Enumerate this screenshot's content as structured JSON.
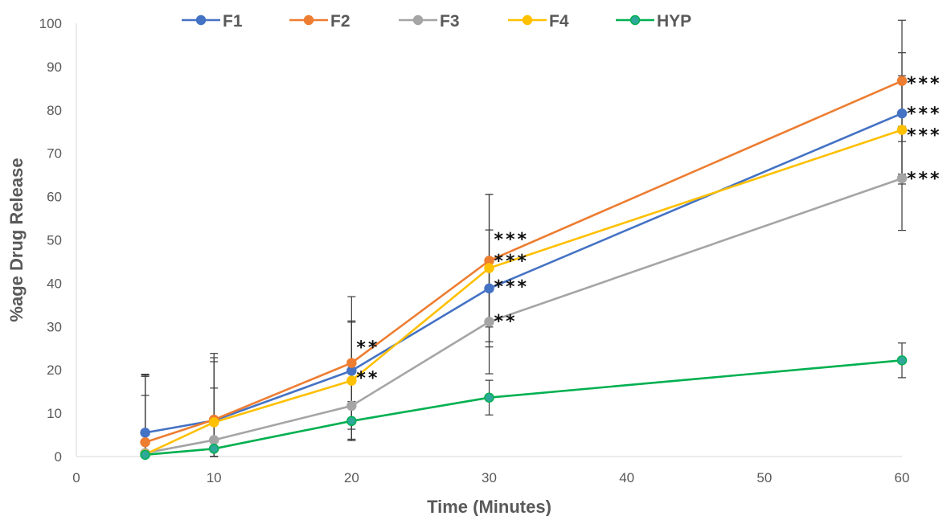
{
  "chart_data": {
    "type": "line",
    "title": "",
    "xlabel": "Time (Minutes)",
    "ylabel": "%age Drug Release",
    "xlim": [
      0,
      60
    ],
    "ylim": [
      0,
      100
    ],
    "x_ticks": [
      0,
      10,
      20,
      30,
      40,
      50,
      60
    ],
    "y_ticks": [
      0,
      10,
      20,
      30,
      40,
      50,
      60,
      70,
      80,
      90,
      100
    ],
    "grid": false,
    "legend_position": "top",
    "x": [
      5,
      10,
      20,
      30,
      60
    ],
    "series": [
      {
        "name": "F1",
        "color": "#4472C4",
        "values": [
          5.5,
          8.3,
          19.8,
          38.8,
          79.2
        ],
        "errors": [
          13,
          14.5,
          11.5,
          13.5,
          14
        ]
      },
      {
        "name": "F2",
        "color": "#ED7D31",
        "values": [
          3.3,
          8.5,
          21.6,
          45.2,
          86.7
        ],
        "errors": [
          15.5,
          15.3,
          15.3,
          15.3,
          14
        ]
      },
      {
        "name": "F3",
        "color": "#A5A5A5",
        "values": [
          0.8,
          3.8,
          11.7,
          31.1,
          64.2
        ],
        "errors": [
          13.3,
          12,
          8,
          12,
          12
        ]
      },
      {
        "name": "F4",
        "color": "#FFC000",
        "values": [
          0.5,
          7.9,
          17.5,
          43.5,
          75.4
        ],
        "errors": [
          18.5,
          14,
          13.5,
          17,
          12.5
        ]
      },
      {
        "name": "HYP",
        "color": "#00B050",
        "marker_fill": "#2FA89A",
        "values": [
          0.4,
          1.8,
          8.2,
          13.6,
          22.2
        ],
        "errors": [
          0.4,
          1.8,
          4.5,
          4,
          4
        ]
      }
    ],
    "annotations": [
      {
        "text": "**",
        "x": 20,
        "y": 25.5
      },
      {
        "text": "**",
        "x": 20,
        "y": 18.5
      },
      {
        "text": "***",
        "x": 30,
        "y": 50.5
      },
      {
        "text": "***",
        "x": 30,
        "y": 45.5
      },
      {
        "text": "***",
        "x": 30,
        "y": 39.5
      },
      {
        "text": "**",
        "x": 30,
        "y": 31.5
      },
      {
        "text": "***",
        "x": 60,
        "y": 86.5
      },
      {
        "text": "***",
        "x": 60,
        "y": 79.5
      },
      {
        "text": "***",
        "x": 60,
        "y": 74.5
      },
      {
        "text": "***",
        "x": 60,
        "y": 64.5
      }
    ]
  }
}
